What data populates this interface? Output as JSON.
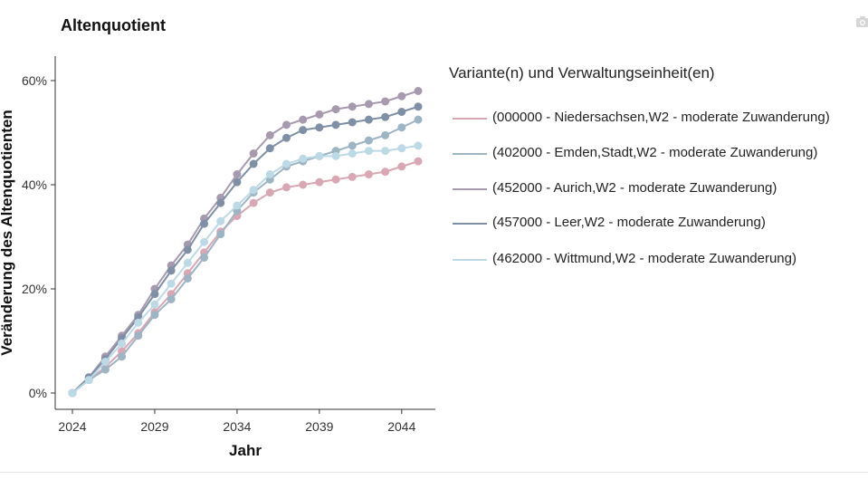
{
  "chart_data": {
    "type": "line",
    "title": "Altenquotient",
    "xlabel": "Jahr",
    "ylabel": "Veränderung des Altenquotienten",
    "x": [
      2024,
      2025,
      2026,
      2027,
      2028,
      2029,
      2030,
      2031,
      2032,
      2033,
      2034,
      2035,
      2036,
      2037,
      2038,
      2039,
      2040,
      2041,
      2042,
      2043,
      2044,
      2045
    ],
    "xticks": [
      2024,
      2029,
      2034,
      2039,
      2044
    ],
    "xtick_labels": [
      "2024",
      "2029",
      "2034",
      "2039",
      "2044"
    ],
    "xlim": [
      2024,
      2045
    ],
    "yticks": [
      0,
      20,
      40,
      60
    ],
    "ytick_labels": [
      "0%",
      "20%",
      "40%",
      "60%"
    ],
    "ylim": [
      0,
      60
    ],
    "grid": false,
    "legend_title": "Variante(n) und Verwaltungseinheit(en)",
    "legend_position": "right",
    "series": [
      {
        "name": "(000000 - Niedersachsen,W2 - moderate Zuwanderung)",
        "color": "#d9a7b4",
        "values": [
          0,
          2.5,
          5.0,
          8.0,
          11.5,
          15.5,
          19.0,
          23.0,
          27.0,
          31.0,
          34.0,
          36.5,
          38.5,
          39.5,
          40.0,
          40.5,
          41.0,
          41.5,
          42.0,
          42.5,
          43.5,
          44.5
        ]
      },
      {
        "name": "(402000 - Emden,Stadt,W2 - moderate Zuwanderung)",
        "color": "#9cb4c3",
        "values": [
          0,
          2.5,
          4.5,
          7.0,
          11.0,
          15.0,
          18.0,
          22.0,
          26.0,
          30.5,
          35.0,
          38.5,
          41.0,
          43.5,
          44.5,
          45.5,
          46.5,
          47.5,
          48.5,
          49.5,
          51.0,
          52.5
        ]
      },
      {
        "name": "(452000 - Aurich,W2 - moderate Zuwanderung)",
        "color": "#a799ae",
        "values": [
          0,
          3.0,
          7.0,
          11.0,
          15.0,
          20.0,
          24.5,
          28.5,
          33.5,
          37.5,
          42.0,
          46.0,
          49.5,
          51.5,
          52.5,
          53.5,
          54.5,
          55.0,
          55.5,
          56.0,
          57.0,
          58.0
        ]
      },
      {
        "name": "(457000 - Leer,W2 - moderate Zuwanderung)",
        "color": "#7e8fa6",
        "values": [
          0,
          3.0,
          6.5,
          10.5,
          14.5,
          19.0,
          23.5,
          27.5,
          32.5,
          36.5,
          40.5,
          44.0,
          47.0,
          49.0,
          50.5,
          51.0,
          51.5,
          52.0,
          52.5,
          53.0,
          54.0,
          55.0
        ]
      },
      {
        "name": "(462000 - Wittmund,W2 - moderate Zuwanderung)",
        "color": "#bcd9e6",
        "values": [
          0,
          2.5,
          6.0,
          9.5,
          13.5,
          17.0,
          21.0,
          25.0,
          29.0,
          33.0,
          36.0,
          39.0,
          42.0,
          44.0,
          45.0,
          45.5,
          45.5,
          46.0,
          46.5,
          46.5,
          47.0,
          47.5
        ]
      }
    ]
  },
  "icons": {
    "camera": "camera-icon"
  }
}
